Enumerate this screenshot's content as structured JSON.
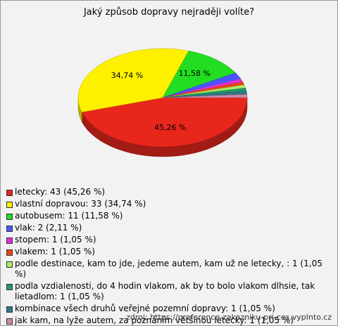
{
  "chart_data": {
    "type": "pie3d",
    "title": "Jaký způsob dopravy nejraději volíte?",
    "categories": [
      "letecky: 43 (45,26 %)",
      "vlastní dopravou: 33 (34,74 %)",
      "autobusem: 11 (11,58 %)",
      "vlak: 2 (2,11 %)",
      "stopem: 1 (1,05 %)",
      "vlakem: 1 (1,05 %)",
      "podle destinace, kam to jde, jedeme autem, kam už ne letecky, : 1 (1,05 %)",
      "podla vzdialenosti, do 4 hodin vlakom, ak by to bolo vlakom dlhsie, tak lietadlom: 1 (1,05 %)",
      "kombinace všech druhů veřejné pozemní dopravy: 1 (1,05 %)",
      "jak kam, na lyže autem, za poznáním většinou letecky: 1 (1,05 %)"
    ],
    "values": [
      45.26,
      34.74,
      11.58,
      2.11,
      1.05,
      1.05,
      1.05,
      1.05,
      1.05,
      1.05
    ],
    "value_labels": [
      "45,26 %",
      "34,74 %",
      "11,58 %",
      null,
      null,
      null,
      null,
      null,
      null,
      null
    ],
    "colors": [
      "#e8261c",
      "#fff000",
      "#22dd22",
      "#4a55ff",
      "#dd33dd",
      "#ee4410",
      "#aaee66",
      "#229966",
      "#337788",
      "#cc88aa"
    ],
    "source": "zdroj: https://preference-zakazniku-pri-ces.vyplnto.cz"
  }
}
